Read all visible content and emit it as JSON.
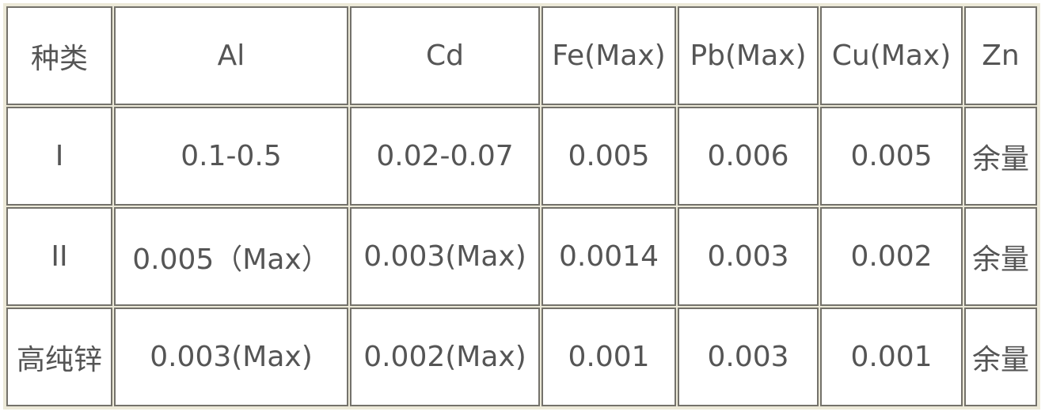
{
  "table": {
    "headers": [
      "种类",
      "Al",
      "Cd",
      "Fe(Max)",
      "Pb(Max)",
      "Cu(Max)",
      "Zn"
    ],
    "rows": [
      [
        "I",
        "0.1-0.5",
        "0.02-0.07",
        "0.005",
        "0.006",
        "0.005",
        "余量"
      ],
      [
        "II",
        "0.005（Max）",
        "0.003(Max)",
        "0.0014",
        "0.003",
        "0.002",
        "余量"
      ],
      [
        "高纯锌",
        "0.003(Max)",
        "0.002(Max)",
        "0.001",
        "0.003",
        "0.001",
        "余量"
      ]
    ]
  }
}
